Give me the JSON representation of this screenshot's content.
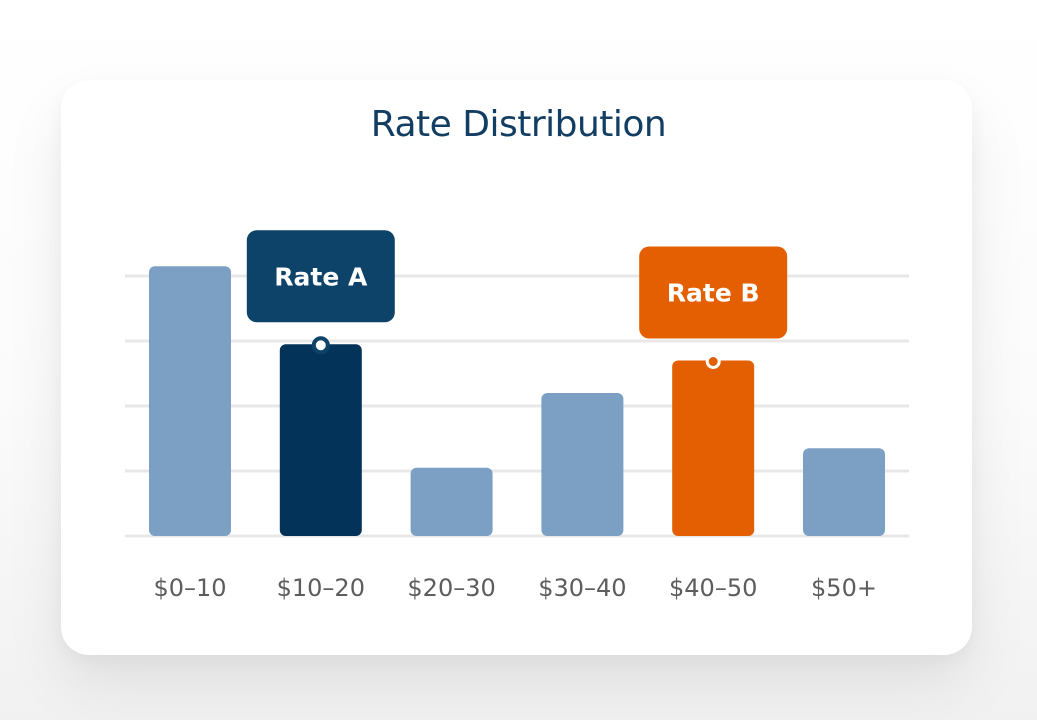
{
  "chart_data": {
    "type": "bar",
    "title": "Rate Distribution",
    "categories": [
      "$0–10",
      "$10–20",
      "$20–30",
      "$30–40",
      "$40–50",
      "$50+"
    ],
    "values": [
      4.15,
      2.95,
      1.05,
      2.2,
      2.7,
      1.35
    ],
    "ylim": [
      0,
      4
    ],
    "grid": true,
    "colors": {
      "default": "#7ba0c4",
      "rate_a": "#04335a",
      "rate_b": "#e35f02",
      "grid": "#e8e8e8",
      "title": "#123e63",
      "tick": "#5d5d5d"
    },
    "annotations": [
      {
        "label": "Rate A",
        "category": "$10–20",
        "color": "#0d4269"
      },
      {
        "label": "Rate B",
        "category": "$40–50",
        "color": "#e35f02"
      }
    ]
  }
}
